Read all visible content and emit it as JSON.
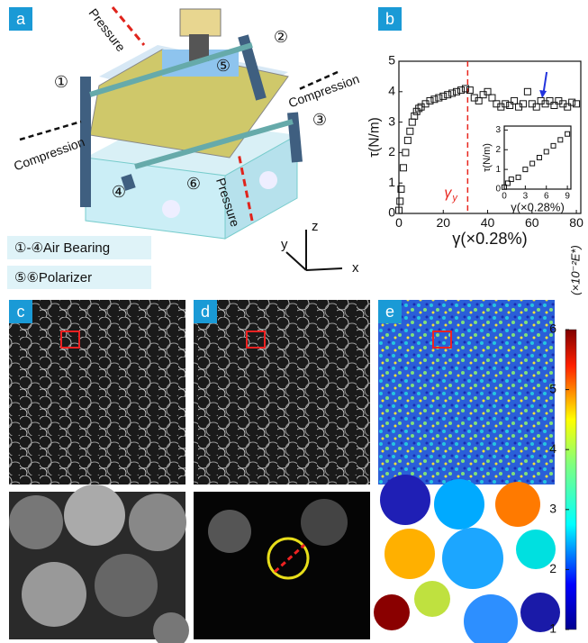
{
  "panels": {
    "a": "a",
    "b": "b",
    "c": "c",
    "d": "d",
    "e": "e"
  },
  "schematic": {
    "pressure_top": "Pressure",
    "pressure_bottom": "Pressure",
    "compression_right": "Compression",
    "compression_left": "Compression",
    "markers": [
      "①",
      "②",
      "③",
      "④",
      "⑤",
      "⑥"
    ],
    "legend": [
      "①-④Air Bearing",
      "⑤⑥Polarizer"
    ],
    "axes": [
      "z",
      "y",
      "x"
    ]
  },
  "chart_data": [
    {
      "type": "scatter",
      "ylabel": "τ(N/m)",
      "xlabel": "γ(×0.28%)",
      "x": [
        0,
        0.5,
        1,
        2,
        3,
        4,
        5,
        6,
        7,
        8,
        9,
        10,
        12,
        14,
        16,
        18,
        20,
        22,
        24,
        26,
        28,
        30,
        32,
        34,
        36,
        38,
        40,
        42,
        44,
        46,
        48,
        50,
        52,
        54,
        56,
        58,
        60,
        62,
        64,
        66,
        68,
        70,
        72,
        74,
        76,
        78,
        80
      ],
      "values": [
        0.1,
        0.4,
        0.8,
        1.5,
        2.0,
        2.4,
        2.7,
        3.0,
        3.2,
        3.35,
        3.45,
        3.5,
        3.6,
        3.7,
        3.75,
        3.8,
        3.85,
        3.9,
        3.95,
        4.0,
        4.05,
        4.1,
        4.05,
        3.8,
        3.7,
        3.9,
        4.0,
        3.8,
        3.6,
        3.5,
        3.6,
        3.55,
        3.7,
        3.5,
        3.6,
        4.0,
        3.6,
        3.5,
        3.7,
        3.6,
        3.7,
        3.55,
        3.7,
        3.6,
        3.5,
        3.65,
        3.6
      ],
      "xlim": [
        0,
        82
      ],
      "ylim": [
        0,
        5
      ],
      "xticks": [
        0,
        20,
        40,
        60,
        80
      ],
      "yticks": [
        0,
        1,
        2,
        3,
        4,
        5
      ],
      "vline": {
        "x": 31,
        "color": "#e8261e",
        "symbol": "γ",
        "subscript": "y"
      },
      "arrow": {
        "x": 65,
        "color": "#2233dd"
      }
    },
    {
      "type": "scatter",
      "ylabel": "τ(N/m)",
      "xlabel": "γ(×0.28%)",
      "x": [
        0,
        0.5,
        1,
        2,
        3,
        4,
        5,
        6,
        7,
        8,
        9
      ],
      "values": [
        0.1,
        0.3,
        0.5,
        0.6,
        1.0,
        1.3,
        1.6,
        1.9,
        2.2,
        2.5,
        2.8
      ],
      "xlim": [
        0,
        9.5
      ],
      "ylim": [
        0,
        3.2
      ],
      "xticks": [
        0,
        3,
        6,
        9
      ],
      "yticks": [
        0,
        1,
        2,
        3
      ]
    }
  ],
  "colorbar": {
    "lim": [
      1,
      6
    ],
    "ticks": [
      1,
      2,
      3,
      4,
      5,
      6
    ],
    "label": "(×10⁻²E*)"
  }
}
